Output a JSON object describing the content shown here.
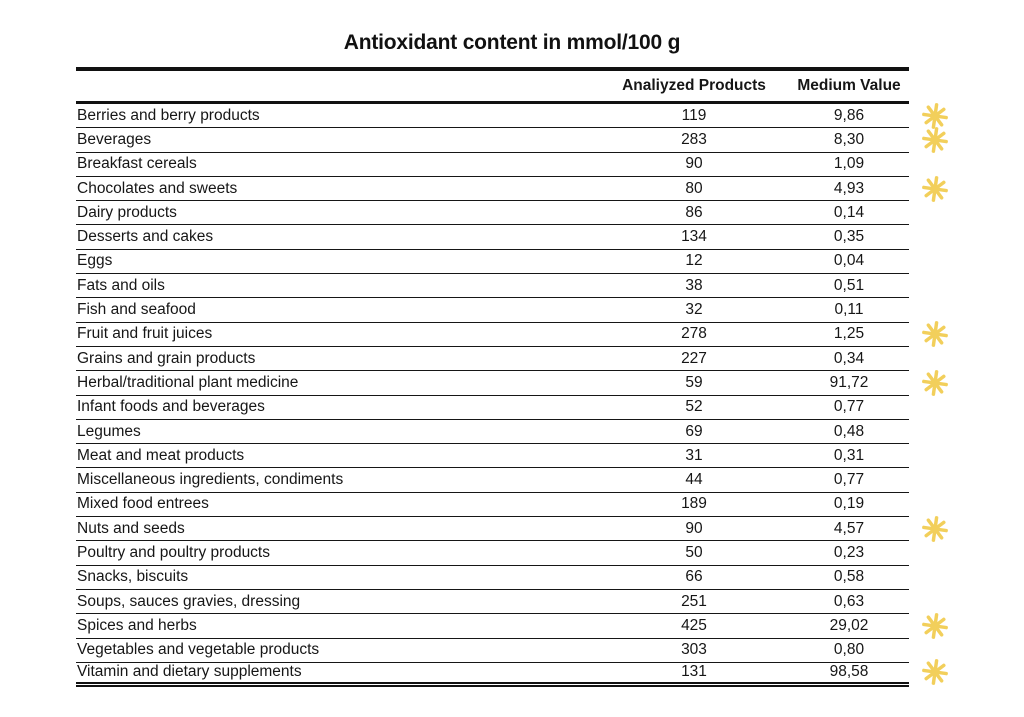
{
  "title": "Antioxidant content in mmol/100 g",
  "colors": {
    "star": "#F2CF5B",
    "text": "#161616",
    "rule": "#111111",
    "background": "#ffffff"
  },
  "chart_data": {
    "type": "table",
    "title": "Antioxidant content in mmol/100 g",
    "columns": [
      "Analiyzed Products",
      "Medium Value"
    ],
    "column_headers": {
      "analyzed_products": "Analiyzed Products",
      "medium_value": "Medium Value"
    },
    "star_marker": "yellow-asterisk",
    "rows": [
      {
        "category": "Berries and berry products",
        "analyzed_products": "119",
        "medium_value": "9,86",
        "starred": true
      },
      {
        "category": "Beverages",
        "analyzed_products": "283",
        "medium_value": "8,30",
        "starred": true
      },
      {
        "category": "Breakfast cereals",
        "analyzed_products": "90",
        "medium_value": "1,09",
        "starred": false
      },
      {
        "category": "Chocolates and sweets",
        "analyzed_products": "80",
        "medium_value": "4,93",
        "starred": true
      },
      {
        "category": "Dairy products",
        "analyzed_products": "86",
        "medium_value": "0,14",
        "starred": false
      },
      {
        "category": "Desserts and cakes",
        "analyzed_products": "134",
        "medium_value": "0,35",
        "starred": false
      },
      {
        "category": "Eggs",
        "analyzed_products": "12",
        "medium_value": "0,04",
        "starred": false
      },
      {
        "category": "Fats and oils",
        "analyzed_products": "38",
        "medium_value": "0,51",
        "starred": false
      },
      {
        "category": "Fish and seafood",
        "analyzed_products": "32",
        "medium_value": "0,11",
        "starred": false
      },
      {
        "category": "Fruit and fruit juices",
        "analyzed_products": "278",
        "medium_value": "1,25",
        "starred": true
      },
      {
        "category": "Grains and grain products",
        "analyzed_products": "227",
        "medium_value": "0,34",
        "starred": false
      },
      {
        "category": "Herbal/traditional plant medicine",
        "analyzed_products": "59",
        "medium_value": "91,72",
        "starred": true
      },
      {
        "category": "Infant foods and beverages",
        "analyzed_products": "52",
        "medium_value": "0,77",
        "starred": false
      },
      {
        "category": "Legumes",
        "analyzed_products": "69",
        "medium_value": "0,48",
        "starred": false
      },
      {
        "category": "Meat and meat products",
        "analyzed_products": "31",
        "medium_value": "0,31",
        "starred": false
      },
      {
        "category": "Miscellaneous ingredients, condiments",
        "analyzed_products": "44",
        "medium_value": "0,77",
        "starred": false
      },
      {
        "category": "Mixed food entrees",
        "analyzed_products": "189",
        "medium_value": "0,19",
        "starred": false
      },
      {
        "category": "Nuts and seeds",
        "analyzed_products": "90",
        "medium_value": "4,57",
        "starred": true
      },
      {
        "category": "Poultry and poultry products",
        "analyzed_products": "50",
        "medium_value": "0,23",
        "starred": false
      },
      {
        "category": "Snacks, biscuits",
        "analyzed_products": "66",
        "medium_value": "0,58",
        "starred": false
      },
      {
        "category": "Soups, sauces gravies, dressing",
        "analyzed_products": "251",
        "medium_value": "0,63",
        "starred": false
      },
      {
        "category": "Spices and herbs",
        "analyzed_products": "425",
        "medium_value": "29,02",
        "starred": true
      },
      {
        "category": "Vegetables and vegetable products",
        "analyzed_products": "303",
        "medium_value": "0,80",
        "starred": false
      },
      {
        "category": "Vitamin and dietary supplements",
        "analyzed_products": "131",
        "medium_value": "98,58",
        "starred": true
      }
    ]
  }
}
